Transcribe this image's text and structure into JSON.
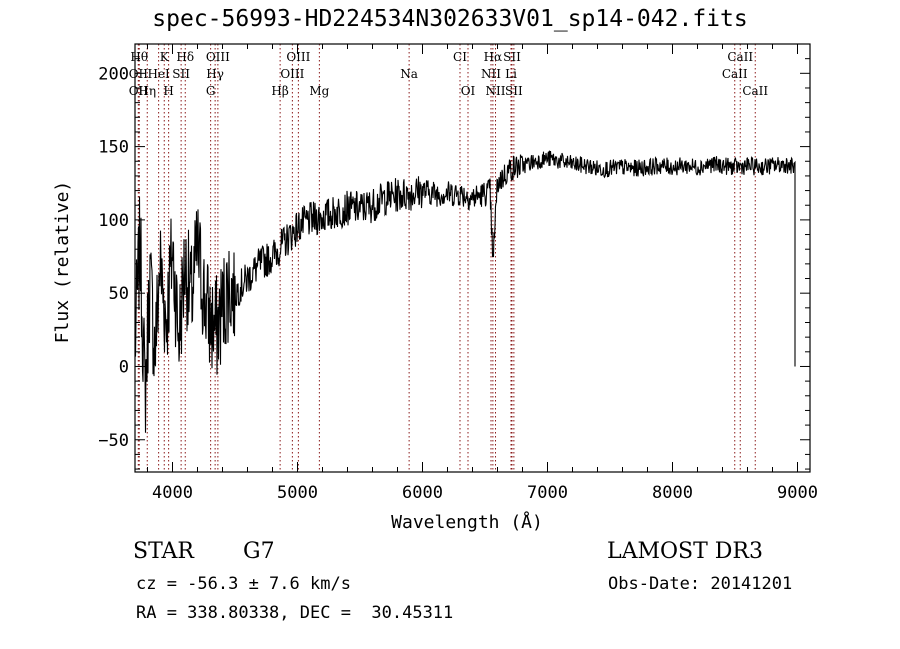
{
  "chart_data": {
    "type": "line",
    "title": "spec-56993-HD224534N302633V01_sp14-042.fits",
    "xlabel": "Wavelength (Å)",
    "ylabel": "Flux (relative)",
    "xlim": [
      3700,
      9100
    ],
    "ylim": [
      -72,
      220
    ],
    "xticks": [
      4000,
      5000,
      6000,
      7000,
      8000,
      9000
    ],
    "yticks": [
      -50,
      0,
      50,
      100,
      150,
      200
    ],
    "grid": false,
    "legend": "none",
    "line_color": "#000000",
    "marker_color": "#8b1a1a",
    "series": [
      {
        "x": [
          3700,
          3740,
          3780,
          3820,
          3860,
          3900,
          3950,
          4000,
          4050,
          4100,
          4150,
          4200,
          4250,
          4300,
          4350,
          4400,
          4450,
          4500,
          4600,
          4700,
          4800,
          4900,
          5000,
          5100,
          5200,
          5300,
          5400,
          5500,
          5600,
          5700,
          5800,
          5900,
          6000,
          6100,
          6200,
          6300,
          6400,
          6500,
          6540,
          6563,
          6600,
          6700,
          6800,
          6900,
          7000,
          7100,
          7200,
          7300,
          7400,
          7500,
          7600,
          7700,
          7800,
          7900,
          8000,
          8100,
          8200,
          8300,
          8400,
          8500,
          8600,
          8700,
          8800,
          8900,
          8980
        ],
        "y": [
          15,
          85,
          -20,
          60,
          10,
          70,
          30,
          80,
          20,
          70,
          45,
          80,
          50,
          30,
          25,
          40,
          55,
          50,
          60,
          70,
          75,
          85,
          95,
          100,
          102,
          105,
          108,
          108,
          110,
          115,
          117,
          118,
          120,
          118,
          118,
          118,
          115,
          118,
          120,
          75,
          125,
          135,
          137,
          140,
          142,
          140,
          138,
          137,
          135,
          135,
          136,
          135,
          136,
          137,
          136,
          137,
          136,
          138,
          137,
          136,
          137,
          136,
          137,
          138,
          136
        ]
      }
    ],
    "lines": [
      {
        "label": "Hθ",
        "x": 3734,
        "row": 0
      },
      {
        "label": "OII",
        "x": 3727,
        "row": 1
      },
      {
        "label": "OII",
        "x": 3727,
        "row": 2
      },
      {
        "label": "Hη",
        "x": 3798,
        "row": 2
      },
      {
        "label": "K",
        "x": 3934,
        "row": 0
      },
      {
        "label": "HeI",
        "x": 3889,
        "row": 1
      },
      {
        "label": "H",
        "x": 3969,
        "row": 2
      },
      {
        "label": "Hδ",
        "x": 4102,
        "row": 0
      },
      {
        "label": "SII",
        "x": 4069,
        "row": 1
      },
      {
        "label": "OIII",
        "x": 4363,
        "row": 0
      },
      {
        "label": "Hγ",
        "x": 4341,
        "row": 1
      },
      {
        "label": "G",
        "x": 4305,
        "row": 2
      },
      {
        "label": "Hβ",
        "x": 4861,
        "row": 2
      },
      {
        "label": "OIII",
        "x": 5007,
        "row": 0
      },
      {
        "label": "OIII",
        "x": 4959,
        "row": 1
      },
      {
        "label": "Mg",
        "x": 5175,
        "row": 2
      },
      {
        "label": "Na",
        "x": 5893,
        "row": 1
      },
      {
        "label": "CI",
        "x": 6300,
        "row": 0
      },
      {
        "label": "OI",
        "x": 6364,
        "row": 2
      },
      {
        "label": "Hα",
        "x": 6563,
        "row": 0
      },
      {
        "label": "SII",
        "x": 6716,
        "row": 0
      },
      {
        "label": "NII",
        "x": 6548,
        "row": 1
      },
      {
        "label": "Li",
        "x": 6708,
        "row": 1
      },
      {
        "label": "NII",
        "x": 6584,
        "row": 2
      },
      {
        "label": "SII",
        "x": 6731,
        "row": 2
      },
      {
        "label": "CaII",
        "x": 8542,
        "row": 0
      },
      {
        "label": "CaII",
        "x": 8498,
        "row": 1
      },
      {
        "label": "CaII",
        "x": 8662,
        "row": 2
      }
    ]
  },
  "info": {
    "class": "STAR",
    "subclass": "G7",
    "cz": "cz = -56.3 ± 7.6 km/s",
    "coords": "RA = 338.80338, DEC =  30.45311",
    "survey": "LAMOST DR3",
    "obsdate": "Obs-Date: 20141201"
  }
}
